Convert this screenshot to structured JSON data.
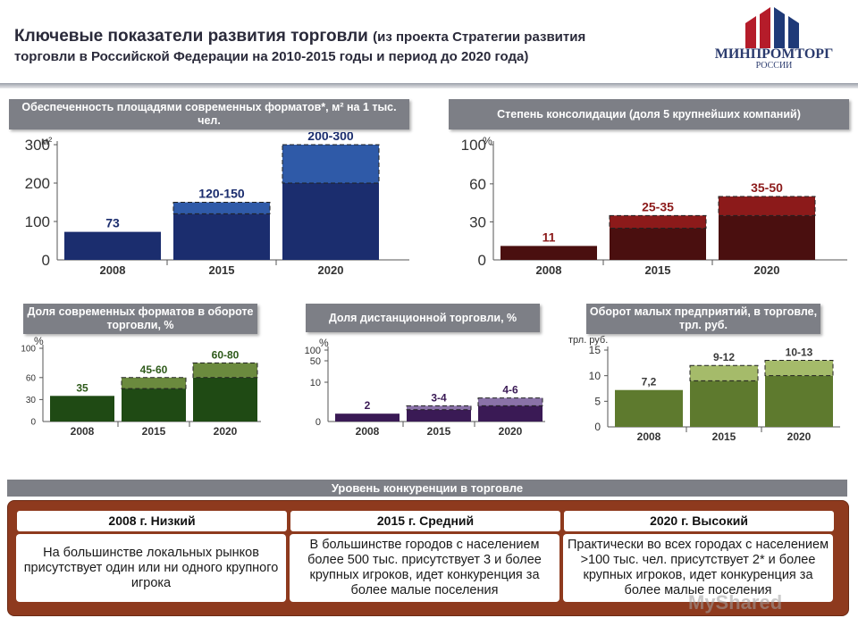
{
  "header": {
    "title": "Ключевые показатели развития торговли",
    "title_suffix": "(из проекта Стратегии развития",
    "title_line2": "торговли в Российской Федерации на 2010-2015 годы и период до 2020 года)"
  },
  "logo": {
    "name": "МИНПРОМТОРГ",
    "sub": "РОССИИ",
    "icon": "ministry-emblem-icon"
  },
  "chart_data": [
    {
      "id": "c1",
      "type": "bar",
      "title": "Обеспеченность площадями современных форматов*, м² на 1 тыс. чел.",
      "unit": "м²",
      "categories": [
        "2008",
        "2015",
        "2020"
      ],
      "series": [
        {
          "values": [
            73,
            120,
            200
          ]
        },
        {
          "values": [
            73,
            150,
            300
          ]
        }
      ],
      "labels": [
        "73",
        "120-150",
        "200-300"
      ],
      "yticks": [
        "0",
        "100",
        "200",
        "300"
      ],
      "ylim": [
        0,
        300
      ],
      "colors": {
        "base": "#1b2d6e",
        "upper": "#2f5aa8",
        "label": "#1b2d6e"
      }
    },
    {
      "id": "c2",
      "type": "bar",
      "title": "Степень консолидации (доля 5 крупнейших компаний)",
      "unit": "%",
      "categories": [
        "2008",
        "2015",
        "2020"
      ],
      "series": [
        {
          "values": [
            11,
            25,
            35
          ]
        },
        {
          "values": [
            11,
            35,
            50
          ]
        }
      ],
      "labels": [
        "11",
        "25-35",
        "35-50"
      ],
      "yticks": [
        "0",
        "30",
        "60",
        "100"
      ],
      "tick_values": [
        0,
        30,
        60,
        100
      ],
      "colors": {
        "base": "#4a0f0f",
        "upper": "#8c1a1a",
        "label": "#8c1a1a"
      }
    },
    {
      "id": "c3",
      "type": "bar",
      "title": "Доля современных форматов в обороте торговли, %",
      "unit": "%",
      "categories": [
        "2008",
        "2015",
        "2020"
      ],
      "series": [
        {
          "values": [
            35,
            45,
            60
          ]
        },
        {
          "values": [
            35,
            60,
            80
          ]
        }
      ],
      "labels": [
        "35",
        "45-60",
        "60-80"
      ],
      "yticks": [
        "0",
        "30",
        "60",
        "100"
      ],
      "tick_values": [
        0,
        30,
        60,
        100
      ],
      "colors": {
        "base": "#1f4a14",
        "upper": "#6b8a3e",
        "label": "#2e5a1a"
      }
    },
    {
      "id": "c4",
      "type": "bar",
      "title": "Доля дистанционной торговли, %",
      "unit": "%",
      "categories": [
        "2008",
        "2015",
        "2020"
      ],
      "series": [
        {
          "values": [
            2,
            3,
            4
          ]
        },
        {
          "values": [
            2,
            4,
            6
          ]
        }
      ],
      "labels": [
        "2",
        "3-4",
        "4-6"
      ],
      "yticks": [
        "0",
        "10",
        "50",
        "100"
      ],
      "tick_values": [
        0,
        10,
        50,
        100
      ],
      "colors": {
        "base": "#3a1a55",
        "upper": "#8a72a8",
        "label": "#3a1a55"
      }
    },
    {
      "id": "c5",
      "type": "bar",
      "title": "Оборот малых предприятий, в торговле, трл. руб.",
      "unit": "трл. руб.",
      "categories": [
        "2008",
        "2015",
        "2020"
      ],
      "series": [
        {
          "values": [
            7.2,
            9,
            10
          ]
        },
        {
          "values": [
            7.2,
            12,
            13
          ]
        }
      ],
      "labels": [
        "7,2",
        "9-12",
        "10-13"
      ],
      "yticks": [
        "0",
        "5",
        "10",
        "15"
      ],
      "tick_values": [
        0,
        5,
        10,
        15
      ],
      "colors": {
        "base": "#5e7a2e",
        "upper": "#a5bb6a",
        "label": "#3a3a3a"
      }
    }
  ],
  "competition": {
    "title": "Уровень конкуренции в торговле",
    "levels": [
      {
        "label": "2008 г. Низкий",
        "desc": "На большинстве локальных рынков присутствует один или ни одного крупного игрока"
      },
      {
        "label": "2015 г. Средний",
        "desc": "В большинстве городов с населением более 500 тыс. присутствует 3 и более крупных игроков, идет конкуренция за более малые поселения"
      },
      {
        "label": "2020 г. Высокий",
        "desc": "Практически во всех городах с населением >100 тыс. чел. присутствует 2* и более крупных игроков, идет конкуренция за более малые поселения"
      }
    ]
  },
  "watermark": "MyShared"
}
